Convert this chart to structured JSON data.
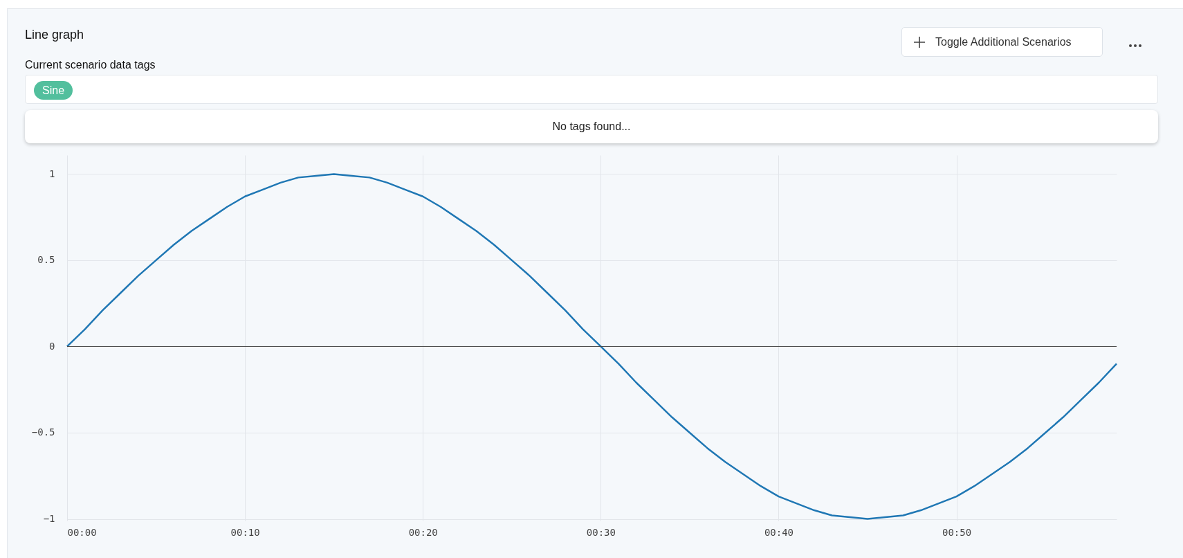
{
  "chart_data": {
    "type": "line",
    "title": "Line graph",
    "subtitle": "Current scenario data tags",
    "annotations": [
      "Sine",
      "No tags found...",
      "Toggle Additional Scenarios"
    ],
    "x": [
      0,
      1,
      2,
      3,
      4,
      5,
      6,
      7,
      8,
      9,
      10,
      11,
      12,
      13,
      14,
      15,
      16,
      17,
      18,
      19,
      20,
      21,
      22,
      23,
      24,
      25,
      26,
      27,
      28,
      29,
      30,
      31,
      32,
      33,
      34,
      35,
      36,
      37,
      38,
      39,
      40,
      41,
      42,
      43,
      44,
      45,
      46,
      47,
      48,
      49,
      50,
      51,
      52,
      53,
      54,
      55,
      56,
      57,
      58,
      59
    ],
    "values": [
      0,
      0.1,
      0.21,
      0.31,
      0.41,
      0.5,
      0.59,
      0.67,
      0.74,
      0.81,
      0.87,
      0.91,
      0.95,
      0.98,
      0.99,
      1,
      0.99,
      0.98,
      0.95,
      0.91,
      0.87,
      0.81,
      0.74,
      0.67,
      0.59,
      0.5,
      0.41,
      0.31,
      0.21,
      0.1,
      0,
      -0.1,
      -0.21,
      -0.31,
      -0.41,
      -0.5,
      -0.59,
      -0.67,
      -0.74,
      -0.81,
      -0.87,
      -0.91,
      -0.95,
      -0.98,
      -0.99,
      -1,
      -0.99,
      -0.98,
      -0.95,
      -0.91,
      -0.87,
      -0.81,
      -0.74,
      -0.67,
      -0.59,
      -0.5,
      -0.41,
      -0.31,
      -0.21,
      -0.1
    ],
    "color": "#1f77b4",
    "xlim": [
      0,
      59
    ],
    "xticks": [
      {
        "value": 0,
        "label": "00:00"
      },
      {
        "value": 10,
        "label": "00:10"
      },
      {
        "value": 20,
        "label": "00:20"
      },
      {
        "value": 30,
        "label": "00:30"
      },
      {
        "value": 40,
        "label": "00:40"
      },
      {
        "value": 50,
        "label": "00:50"
      }
    ],
    "ylim": [
      -1.01,
      1.11
    ],
    "yticks": [
      {
        "value": -1,
        "label": "−1"
      },
      {
        "value": -0.5,
        "label": "−0.5"
      },
      0,
      0.5,
      1
    ],
    "ref_lines": [
      {
        "axis": "y",
        "value": 0,
        "color": "#444444"
      }
    ],
    "grid": true
  }
}
